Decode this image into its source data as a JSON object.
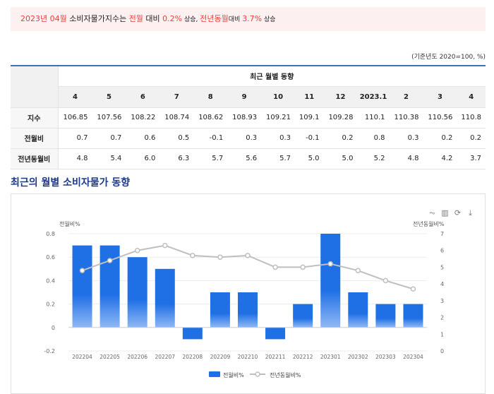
{
  "banner": {
    "period": "2023년 04월",
    "subject": " 소비자물가지수는 ",
    "mom_label": "전월",
    "vs": " 대비 ",
    "mom_value": "0.2%",
    "mom_dir": " 상승, ",
    "yoy_label": "전년동월",
    "vs2": "대비 ",
    "yoy_value": "3.7%",
    "yoy_dir": " 상승"
  },
  "unit_note": "(기준년도 2020=100, %)",
  "table": {
    "group_header": "최근 월별 동향",
    "columns": [
      "4",
      "5",
      "6",
      "7",
      "8",
      "9",
      "10",
      "11",
      "12",
      "2023.1",
      "2",
      "3",
      "4"
    ],
    "rows": [
      {
        "label": "지수",
        "values": [
          "106.85",
          "107.56",
          "108.22",
          "108.74",
          "108.62",
          "108.93",
          "109.21",
          "109.1",
          "109.28",
          "110.1",
          "110.38",
          "110.56",
          "110.8"
        ]
      },
      {
        "label": "전월비",
        "values": [
          "0.7",
          "0.7",
          "0.6",
          "0.5",
          "-0.1",
          "0.3",
          "0.3",
          "-0.1",
          "0.2",
          "0.8",
          "0.3",
          "0.2",
          "0.2"
        ]
      },
      {
        "label": "전년동월비",
        "values": [
          "4.8",
          "5.4",
          "6.0",
          "6.3",
          "5.7",
          "5.6",
          "5.7",
          "5.0",
          "5.0",
          "5.2",
          "4.8",
          "4.2",
          "3.7"
        ]
      }
    ]
  },
  "section_title": "최근의 월별 소비자물가 동향",
  "colors": {
    "bar": "#1f6fe5",
    "bar_light": "#8fb8f5",
    "line": "#bfbfbf",
    "accent": "#e8413b",
    "title": "#1e3a8a"
  },
  "toolbar_icons": [
    "line-chart-icon",
    "bar-chart-icon",
    "refresh-icon",
    "download-icon"
  ],
  "chart_data": {
    "type": "bar",
    "categories": [
      "202204",
      "202205",
      "202206",
      "202207",
      "202208",
      "202209",
      "202210",
      "202211",
      "202212",
      "202301",
      "202302",
      "202303",
      "202304"
    ],
    "series": [
      {
        "name": "전월비%",
        "type": "bar",
        "axis": "left",
        "values": [
          0.7,
          0.7,
          0.6,
          0.5,
          -0.1,
          0.3,
          0.3,
          -0.1,
          0.2,
          0.8,
          0.3,
          0.2,
          0.2
        ]
      },
      {
        "name": "전년동월비%",
        "type": "line",
        "axis": "right",
        "values": [
          4.8,
          5.4,
          6.0,
          6.3,
          5.7,
          5.6,
          5.7,
          5.0,
          5.0,
          5.2,
          4.8,
          4.2,
          3.7
        ]
      }
    ],
    "ylabel_left": "전월비%",
    "ylabel_right": "전년동월비%",
    "ylim_left": [
      -0.2,
      0.8
    ],
    "yticks_left": [
      "-0.2",
      "0",
      "0.2",
      "0.4",
      "0.6",
      "0.8"
    ],
    "ylim_right": [
      0,
      7
    ],
    "yticks_right": [
      "0",
      "1",
      "2",
      "3",
      "4",
      "5",
      "6",
      "7"
    ],
    "legend_position": "bottom-center",
    "grid": true
  }
}
